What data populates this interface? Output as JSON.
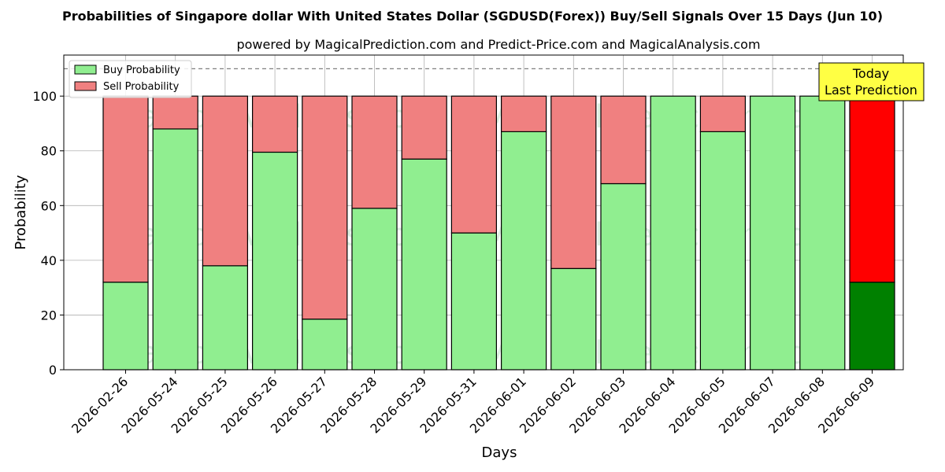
{
  "chart_data": {
    "type": "bar",
    "stacked": true,
    "title": "Probabilities of Singapore dollar With United States Dollar (SGDUSD(Forex)) Buy/Sell Signals Over 15 Days (Jun 10)",
    "subtitle": "powered by MagicalPrediction.com and Predict-Price.com and MagicalAnalysis.com",
    "xlabel": "Days",
    "ylabel": "Probability",
    "ylim": [
      0,
      115
    ],
    "yticks": [
      0,
      20,
      40,
      60,
      80,
      100
    ],
    "reference_line": 110,
    "grid": true,
    "legend_position": "top-left",
    "categories": [
      "2026-02-26",
      "2026-05-24",
      "2026-05-25",
      "2026-05-26",
      "2026-05-27",
      "2026-05-28",
      "2026-05-29",
      "2026-05-31",
      "2026-06-01",
      "2026-06-02",
      "2026-06-03",
      "2026-06-04",
      "2026-06-05",
      "2026-06-07",
      "2026-06-08",
      "2026-06-09"
    ],
    "series": [
      {
        "name": "Buy Probability",
        "color": "#90ee90",
        "highlight_color": "#008000",
        "values": [
          32,
          88,
          38,
          79.5,
          18.5,
          59,
          77,
          50,
          87,
          37,
          68,
          100,
          87,
          100,
          100,
          32
        ]
      },
      {
        "name": "Sell Probability",
        "color": "#f08080",
        "highlight_color": "#ff0000",
        "values": [
          68,
          12,
          62,
          20.5,
          81.5,
          41,
          23,
          50,
          13,
          63,
          32,
          0,
          13,
          0,
          0,
          68
        ]
      }
    ],
    "highlight_index": 15,
    "annotation": {
      "text_lines": [
        "Today",
        "Last Prediction"
      ],
      "background": "#ffff44"
    },
    "watermarks": [
      "MagicalAnalysis.com",
      "MagicalPrediction.com"
    ]
  }
}
